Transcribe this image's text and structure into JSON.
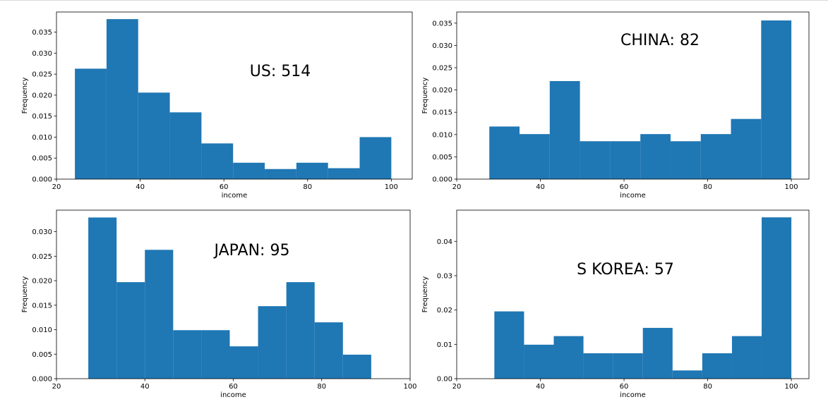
{
  "chart_data": [
    {
      "type": "bar",
      "subtype": "histogram",
      "annotation": "US: 514",
      "xlabel": "income",
      "ylabel": "Frequency",
      "xlim": [
        20,
        105
      ],
      "ylim": [
        0,
        0.0398
      ],
      "xticks": [
        20,
        40,
        60,
        80,
        100
      ],
      "yticks": [
        0.0,
        0.005,
        0.01,
        0.015,
        0.02,
        0.025,
        0.03,
        0.035
      ],
      "ytick_labels": [
        "0.000",
        "0.005",
        "0.010",
        "0.015",
        "0.020",
        "0.025",
        "0.030",
        "0.035"
      ],
      "bin_edges": [
        24.4,
        31.96,
        39.52,
        47.08,
        54.64,
        62.2,
        69.76,
        77.32,
        84.88,
        92.44,
        100
      ],
      "values": [
        0.0263,
        0.0381,
        0.0206,
        0.0159,
        0.0085,
        0.0039,
        0.0024,
        0.0039,
        0.0026,
        0.01
      ],
      "color": "#1f77b4"
    },
    {
      "type": "bar",
      "subtype": "histogram",
      "annotation": "CHINA: 82",
      "xlabel": "income",
      "ylabel": "Frequency",
      "xlim": [
        20,
        104.2
      ],
      "ylim": [
        0,
        0.0375
      ],
      "xticks": [
        20,
        40,
        60,
        80,
        100
      ],
      "yticks": [
        0.0,
        0.005,
        0.01,
        0.015,
        0.02,
        0.025,
        0.03,
        0.035
      ],
      "ytick_labels": [
        "0.000",
        "0.005",
        "0.010",
        "0.015",
        "0.020",
        "0.025",
        "0.030",
        "0.035"
      ],
      "bin_edges": [
        27.8,
        35.02,
        42.24,
        49.46,
        56.68,
        63.9,
        71.12,
        78.34,
        85.56,
        92.78,
        100
      ],
      "values": [
        0.0118,
        0.0101,
        0.022,
        0.0085,
        0.0085,
        0.0101,
        0.0085,
        0.0101,
        0.0135,
        0.0356
      ],
      "color": "#1f77b4"
    },
    {
      "type": "bar",
      "subtype": "histogram",
      "annotation": "JAPAN: 95",
      "xlabel": "income",
      "ylabel": "Frequency",
      "xlim": [
        20,
        100
      ],
      "ylim": [
        0,
        0.0344
      ],
      "xticks": [
        20,
        40,
        60,
        80,
        100
      ],
      "yticks": [
        0.0,
        0.005,
        0.01,
        0.015,
        0.02,
        0.025,
        0.03
      ],
      "ytick_labels": [
        "0.000",
        "0.005",
        "0.010",
        "0.015",
        "0.020",
        "0.025",
        "0.030"
      ],
      "bin_edges": [
        27.2,
        33.6,
        40.0,
        46.4,
        52.8,
        59.2,
        65.6,
        72.0,
        78.4,
        84.8,
        91.2
      ],
      "values": [
        0.0329,
        0.0197,
        0.0263,
        0.0099,
        0.0099,
        0.0066,
        0.0148,
        0.0197,
        0.0115,
        0.0049
      ],
      "color": "#1f77b4"
    },
    {
      "type": "bar",
      "subtype": "histogram",
      "annotation": "S KOREA: 57",
      "xlabel": "income",
      "ylabel": "Frequency",
      "xlim": [
        20,
        104.2
      ],
      "ylim": [
        0,
        0.0491
      ],
      "xticks": [
        20,
        40,
        60,
        80,
        100
      ],
      "yticks": [
        0.0,
        0.01,
        0.02,
        0.03,
        0.04
      ],
      "ytick_labels": [
        "0.00",
        "0.01",
        "0.02",
        "0.03",
        "0.04"
      ],
      "bin_edges": [
        29.0,
        36.1,
        43.2,
        50.3,
        57.4,
        64.5,
        71.6,
        78.7,
        85.8,
        92.9,
        100
      ],
      "values": [
        0.0196,
        0.0099,
        0.0124,
        0.0074,
        0.0074,
        0.0148,
        0.0024,
        0.0074,
        0.0124,
        0.047
      ],
      "color": "#1f77b4"
    }
  ]
}
